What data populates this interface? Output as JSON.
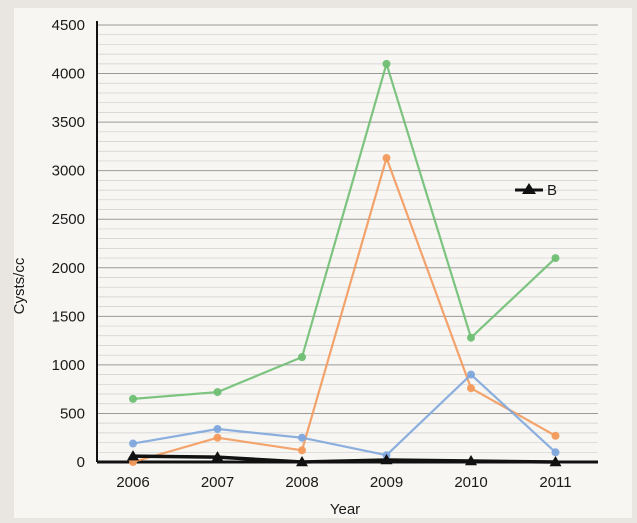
{
  "chart_data": {
    "type": "line",
    "title": "",
    "xlabel": "Year",
    "ylabel": "Cysts/cc",
    "ylim": [
      0,
      4500
    ],
    "yticks": [
      0,
      500,
      1000,
      1500,
      2000,
      2500,
      3000,
      3500,
      4000,
      4500
    ],
    "categories": [
      "2006",
      "2007",
      "2008",
      "2009",
      "2010",
      "2011"
    ],
    "grid": true,
    "legend": {
      "position": "right",
      "entries": [
        "B"
      ]
    },
    "series": [
      {
        "name": "B",
        "color": "#111111",
        "marker": "triangle",
        "points": [
          [
            2006,
            60
          ],
          [
            2007,
            50
          ],
          [
            2008,
            0
          ],
          [
            2009,
            20
          ],
          [
            2010,
            10
          ],
          [
            2011,
            0
          ]
        ]
      },
      {
        "color": "#6fbf73",
        "marker": "circle",
        "points": [
          [
            2006,
            650
          ],
          [
            2007,
            720
          ],
          [
            2008,
            1080
          ],
          [
            2009,
            4100
          ],
          [
            2010,
            1280
          ],
          [
            2011,
            2100
          ]
        ]
      },
      {
        "color": "#f29a5c",
        "marker": "circle",
        "points": [
          [
            2006,
            0
          ],
          [
            2007,
            250
          ],
          [
            2008,
            120
          ],
          [
            2009,
            3130
          ],
          [
            2010,
            760
          ],
          [
            2011,
            270
          ]
        ]
      },
      {
        "color": "#7fa7dc",
        "marker": "circle",
        "points": [
          [
            2006,
            190
          ],
          [
            2007,
            340
          ],
          [
            2008,
            250
          ],
          [
            2009,
            70
          ],
          [
            2010,
            900
          ],
          [
            2011,
            100
          ]
        ]
      }
    ]
  }
}
